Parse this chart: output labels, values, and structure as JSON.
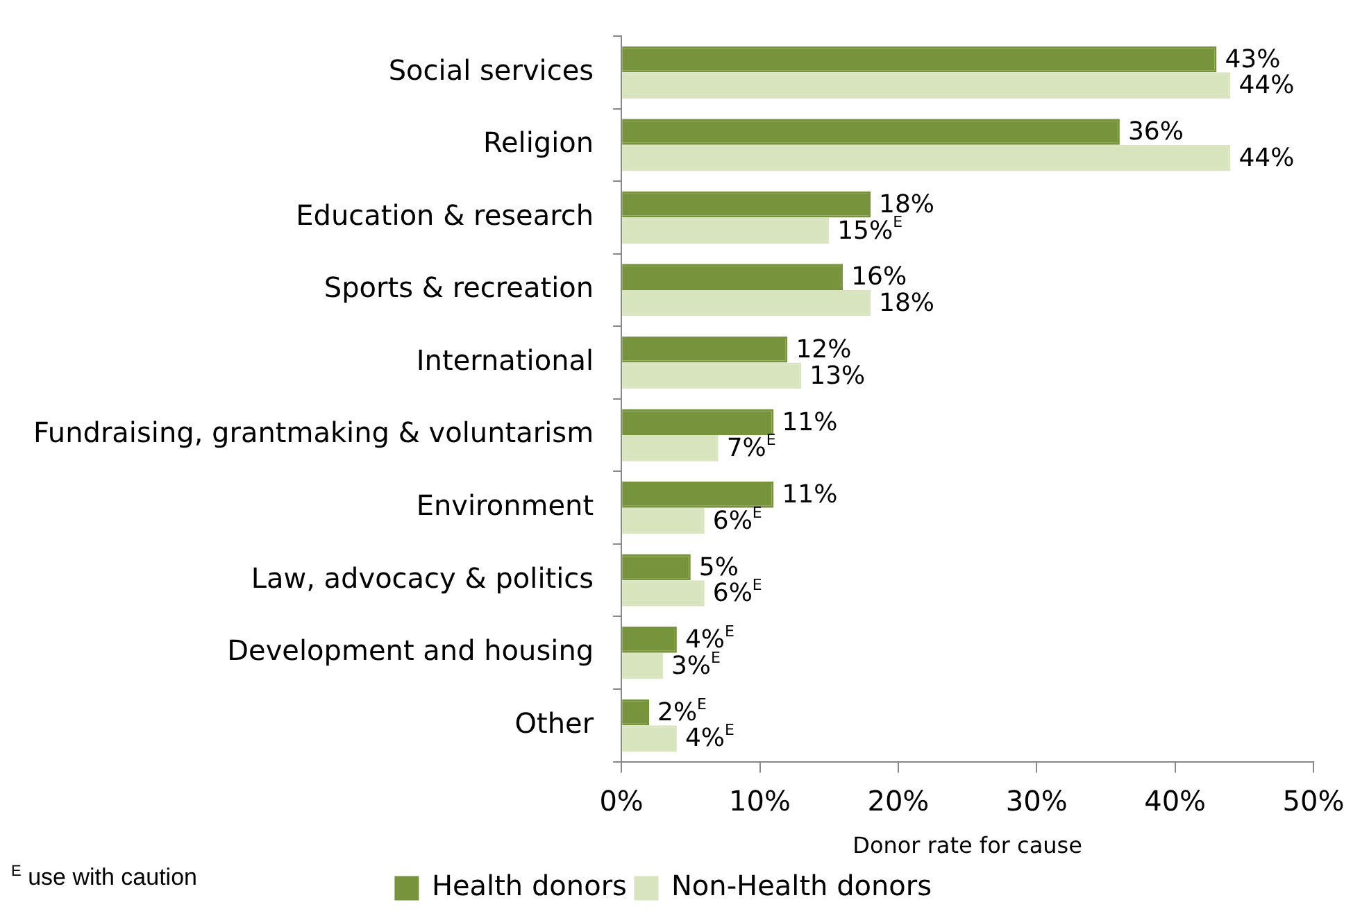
{
  "chart_data": {
    "type": "bar",
    "orientation": "horizontal",
    "xlabel": "Donor rate for cause",
    "categories": [
      "Social services",
      "Religion",
      "Education & research",
      "Sports & recreation",
      "International",
      "Fundraising, grantmaking & voluntarism",
      "Environment",
      "Law, advocacy & politics",
      "Development and housing",
      "Other"
    ],
    "series": [
      {
        "name": "Health donors",
        "color": "#77933c",
        "values": [
          43,
          36,
          18,
          16,
          12,
          11,
          11,
          5,
          4,
          2
        ],
        "value_labels": [
          "43%",
          "36%",
          "18%",
          "16%",
          "12%",
          "11%",
          "11%",
          "5%",
          "4%$^{E}$",
          "2%$^{E}$"
        ]
      },
      {
        "name": "Non-Health donors",
        "color": "#d7e4bd",
        "values": [
          44,
          44,
          15,
          18,
          13,
          7,
          6,
          6,
          3,
          4
        ],
        "value_labels": [
          "44%",
          "44%",
          "15%$^{E}$",
          "18%",
          "13%",
          "7%$^{E}$",
          "6%$^{E}$",
          "6%$^{E}$",
          "3%$^{E}$",
          "4%$^{E}$"
        ]
      }
    ],
    "xlim": [
      0,
      50
    ],
    "xticks": [
      {
        "value": 0,
        "label": "0%"
      },
      {
        "value": 10,
        "label": "10%"
      },
      {
        "value": 20,
        "label": "20%"
      },
      {
        "value": 30,
        "label": "30%"
      },
      {
        "value": 40,
        "label": "40%"
      },
      {
        "value": 50,
        "label": "50%"
      }
    ],
    "grid": false,
    "legend": "bottom",
    "annotations": [
      "$^{E}$ use with caution"
    ]
  }
}
